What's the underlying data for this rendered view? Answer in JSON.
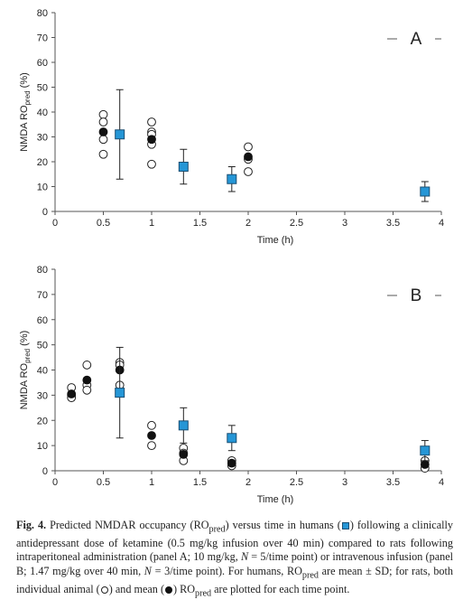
{
  "colors": {
    "human_marker": "#2596d6",
    "human_marker_edge": "#1a4f73",
    "rat_mean": "#111111",
    "rat_individual": "#ffffff",
    "axis": "#555555"
  },
  "chart_data": [
    {
      "type": "scatter",
      "panel": "A",
      "xlabel": "Time (h)",
      "ylabel_main": "NMDA RO",
      "ylabel_sub": "pred",
      "ylabel_tail": " (%)",
      "xlim": [
        0,
        4
      ],
      "ylim": [
        0,
        80
      ],
      "xticks": [
        0,
        0.5,
        1,
        1.5,
        2,
        2.5,
        3,
        3.5,
        4
      ],
      "xtick_labels": [
        "0",
        "0.5",
        "1",
        "1.5",
        "2",
        "2.5",
        "3",
        "3.5",
        "4"
      ],
      "yticks": [
        0,
        10,
        20,
        30,
        40,
        50,
        60,
        70,
        80
      ],
      "ytick_labels": [
        "0",
        "10",
        "20",
        "30",
        "40",
        "50",
        "60",
        "70",
        "80"
      ],
      "grid": false,
      "series": [
        {
          "marker": "open-circle",
          "points": [
            [
              0.5,
              39
            ],
            [
              0.5,
              36
            ],
            [
              0.5,
              29
            ],
            [
              0.5,
              23
            ],
            [
              1,
              36
            ],
            [
              1,
              32
            ],
            [
              1,
              31
            ],
            [
              1,
              27
            ],
            [
              1,
              19
            ],
            [
              2,
              26
            ],
            [
              2,
              21
            ],
            [
              2,
              16
            ]
          ]
        },
        {
          "marker": "filled-circle",
          "points": [
            [
              0.5,
              32
            ],
            [
              1,
              29
            ],
            [
              2,
              22
            ]
          ]
        },
        {
          "marker": "square",
          "points": [
            [
              0.67,
              31
            ],
            [
              1.33,
              18
            ],
            [
              1.83,
              13
            ],
            [
              3.83,
              8
            ]
          ],
          "sd": [
            18,
            7,
            5,
            4
          ]
        }
      ]
    },
    {
      "type": "scatter",
      "panel": "B",
      "xlabel": "Time (h)",
      "ylabel_main": "NMDA RO",
      "ylabel_sub": "pred",
      "ylabel_tail": " (%)",
      "xlim": [
        0,
        4
      ],
      "ylim": [
        0,
        80
      ],
      "xticks": [
        0,
        0.5,
        1,
        1.5,
        2,
        2.5,
        3,
        3.5,
        4
      ],
      "xtick_labels": [
        "0",
        "0.5",
        "1",
        "1.5",
        "2",
        "2.5",
        "3",
        "3.5",
        "4"
      ],
      "yticks": [
        0,
        10,
        20,
        30,
        40,
        50,
        60,
        70,
        80
      ],
      "ytick_labels": [
        "0",
        "10",
        "20",
        "30",
        "40",
        "50",
        "60",
        "70",
        "80"
      ],
      "grid": false,
      "series": [
        {
          "marker": "open-circle",
          "points": [
            [
              0.17,
              33
            ],
            [
              0.17,
              30
            ],
            [
              0.17,
              29
            ],
            [
              0.33,
              42
            ],
            [
              0.33,
              34
            ],
            [
              0.33,
              32
            ],
            [
              0.67,
              43
            ],
            [
              0.67,
              42
            ],
            [
              0.67,
              34
            ],
            [
              1,
              18
            ],
            [
              1,
              10
            ],
            [
              1.33,
              9
            ],
            [
              1.33,
              7
            ],
            [
              1.33,
              4
            ],
            [
              1.83,
              4
            ],
            [
              1.83,
              2
            ],
            [
              3.83,
              4
            ],
            [
              3.83,
              1
            ]
          ]
        },
        {
          "marker": "filled-circle",
          "points": [
            [
              0.17,
              30.5
            ],
            [
              0.33,
              36
            ],
            [
              0.67,
              40
            ],
            [
              1,
              14
            ],
            [
              1.33,
              6.5
            ],
            [
              1.83,
              3
            ],
            [
              3.83,
              2.5
            ]
          ]
        },
        {
          "marker": "square",
          "points": [
            [
              0.67,
              31
            ],
            [
              1.33,
              18
            ],
            [
              1.83,
              13
            ],
            [
              3.83,
              8
            ]
          ],
          "sd": [
            18,
            7,
            5,
            4
          ]
        }
      ]
    }
  ],
  "caption": {
    "label": "Fig. 4.",
    "t1": " Predicted NMDAR occupancy (RO",
    "t1_sub": "pred",
    "t2": ") versus time in humans (",
    "t3": ") following a clinically antidepressant dose of ketamine (0.5 mg/kg infusion over 40 min) compared to rats following intraperitoneal administration (panel A; 10 mg/kg, ",
    "t3_n": "N",
    "t4": " = 5/time point) or intravenous infusion (panel B; 1.47 mg/kg over 40 min, ",
    "t4_n": "N",
    "t5": " = 3/time point). For humans, RO",
    "t5_sub": "pred",
    "t6": " are mean ± SD; for rats, both individual animal (",
    "t7": ") and mean (",
    "t8": ") RO",
    "t8_sub": "pred",
    "t9": " are plotted for each time point."
  }
}
